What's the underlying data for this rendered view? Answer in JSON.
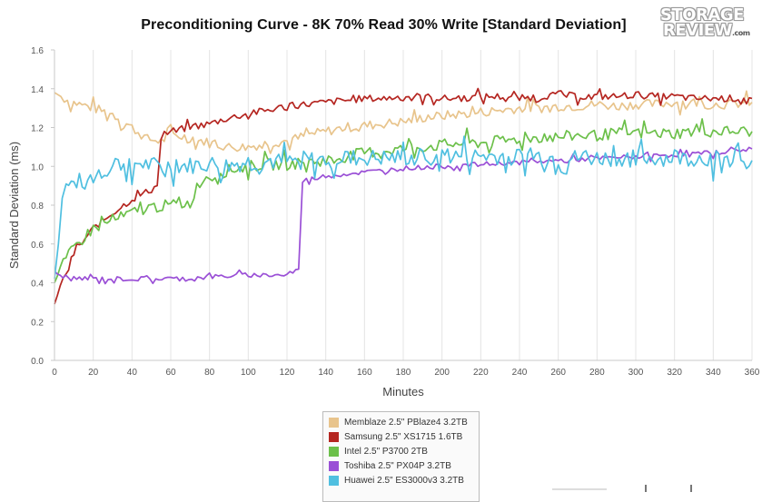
{
  "chart_data": {
    "type": "line",
    "title": "Preconditioning Curve - 8K 70% Read 30% Write [Standard Deviation]",
    "xlabel": "Minutes",
    "ylabel": "Standard Deviation (ms)",
    "xlim": [
      0,
      360
    ],
    "ylim": [
      0,
      1.6
    ],
    "xticks": [
      0,
      20,
      40,
      60,
      80,
      100,
      120,
      140,
      160,
      180,
      200,
      220,
      240,
      260,
      280,
      300,
      320,
      340,
      360
    ],
    "yticks": [
      0.0,
      0.2,
      0.4,
      0.6,
      0.8,
      1.0,
      1.2,
      1.4,
      1.6
    ],
    "grid": "vertical",
    "legend_position": "bottom",
    "series": [
      {
        "name": "Memblaze 2.5\" PBlaze4 3.2TB",
        "color": "#e8c48c",
        "x": [
          0,
          5,
          10,
          20,
          30,
          40,
          48,
          55,
          60,
          70,
          80,
          90,
          100,
          110,
          120,
          130,
          140,
          150,
          160,
          170,
          180,
          190,
          200,
          210,
          220,
          230,
          240,
          250,
          260,
          270,
          280,
          290,
          300,
          310,
          320,
          330,
          340,
          350,
          360
        ],
        "y": [
          1.38,
          1.35,
          1.33,
          1.3,
          1.27,
          1.2,
          1.14,
          1.13,
          1.16,
          1.15,
          1.12,
          1.1,
          1.1,
          1.12,
          1.13,
          1.16,
          1.18,
          1.2,
          1.21,
          1.22,
          1.23,
          1.25,
          1.26,
          1.27,
          1.28,
          1.29,
          1.3,
          1.3,
          1.31,
          1.31,
          1.32,
          1.31,
          1.32,
          1.32,
          1.33,
          1.33,
          1.32,
          1.32,
          1.33
        ]
      },
      {
        "name": "Samsung 2.5\" XS1715 1.6TB",
        "color": "#b52621",
        "x": [
          0,
          3,
          6,
          10,
          20,
          30,
          40,
          50,
          53,
          55,
          60,
          70,
          80,
          90,
          100,
          110,
          120,
          130,
          140,
          150,
          160,
          170,
          180,
          190,
          200,
          210,
          220,
          230,
          240,
          250,
          260,
          270,
          280,
          290,
          300,
          310,
          320,
          330,
          340,
          350,
          360
        ],
        "y": [
          0.29,
          0.38,
          0.45,
          0.55,
          0.68,
          0.76,
          0.83,
          0.88,
          0.9,
          1.15,
          1.18,
          1.2,
          1.22,
          1.25,
          1.27,
          1.29,
          1.31,
          1.32,
          1.33,
          1.34,
          1.35,
          1.35,
          1.36,
          1.36,
          1.35,
          1.35,
          1.36,
          1.36,
          1.35,
          1.36,
          1.37,
          1.36,
          1.36,
          1.36,
          1.37,
          1.36,
          1.36,
          1.35,
          1.35,
          1.35,
          1.35
        ]
      },
      {
        "name": "Intel 2.5\" P3700 2TB",
        "color": "#6cc04a",
        "x": [
          0,
          3,
          6,
          10,
          20,
          30,
          40,
          50,
          60,
          70,
          72,
          75,
          80,
          90,
          100,
          110,
          120,
          130,
          140,
          150,
          160,
          170,
          180,
          190,
          200,
          210,
          220,
          230,
          240,
          250,
          260,
          270,
          280,
          290,
          300,
          310,
          320,
          330,
          340,
          350,
          360
        ],
        "y": [
          0.4,
          0.47,
          0.52,
          0.58,
          0.68,
          0.72,
          0.76,
          0.79,
          0.8,
          0.81,
          0.86,
          0.92,
          0.95,
          0.98,
          1.0,
          1.01,
          1.01,
          1.02,
          1.03,
          1.05,
          1.07,
          1.08,
          1.09,
          1.1,
          1.11,
          1.12,
          1.12,
          1.13,
          1.14,
          1.15,
          1.15,
          1.16,
          1.16,
          1.17,
          1.17,
          1.17,
          1.17,
          1.18,
          1.18,
          1.18,
          1.18
        ]
      },
      {
        "name": "Toshiba 2.5\" PX04P 3.2TB",
        "color": "#9a4fd6",
        "x": [
          0,
          3,
          10,
          20,
          40,
          60,
          80,
          100,
          120,
          126,
          128,
          130,
          140,
          160,
          180,
          200,
          220,
          240,
          260,
          280,
          300,
          320,
          340,
          360
        ],
        "y": [
          0.46,
          0.43,
          0.42,
          0.42,
          0.42,
          0.42,
          0.43,
          0.44,
          0.44,
          0.47,
          0.92,
          0.93,
          0.95,
          0.97,
          0.99,
          1.0,
          1.01,
          1.02,
          1.03,
          1.04,
          1.05,
          1.06,
          1.07,
          1.09
        ]
      },
      {
        "name": "Huawei 2.5\" ES3000v3 3.2TB",
        "color": "#4fbfe0",
        "x": [
          0,
          2,
          4,
          6,
          10,
          20,
          30,
          40,
          50,
          60,
          70,
          80,
          90,
          100,
          110,
          120,
          130,
          140,
          150,
          160,
          170,
          180,
          190,
          200,
          210,
          220,
          230,
          240,
          250,
          260,
          270,
          280,
          290,
          300,
          310,
          320,
          330,
          340,
          350,
          360
        ],
        "y": [
          0.42,
          0.6,
          0.85,
          0.89,
          0.91,
          0.94,
          1.0,
          1.02,
          1.0,
          1.0,
          1.0,
          1.01,
          1.0,
          1.02,
          1.02,
          1.02,
          1.03,
          1.03,
          1.04,
          1.04,
          1.04,
          1.04,
          1.05,
          1.05,
          1.05,
          1.05,
          1.05,
          1.05,
          1.05,
          1.04,
          1.04,
          1.04,
          1.04,
          1.04,
          1.04,
          1.04,
          1.04,
          1.04,
          1.04,
          1.03
        ]
      }
    ]
  },
  "logo": {
    "line1": "STORAGE",
    "line2": "REVIEW",
    "suffix": ".com"
  }
}
